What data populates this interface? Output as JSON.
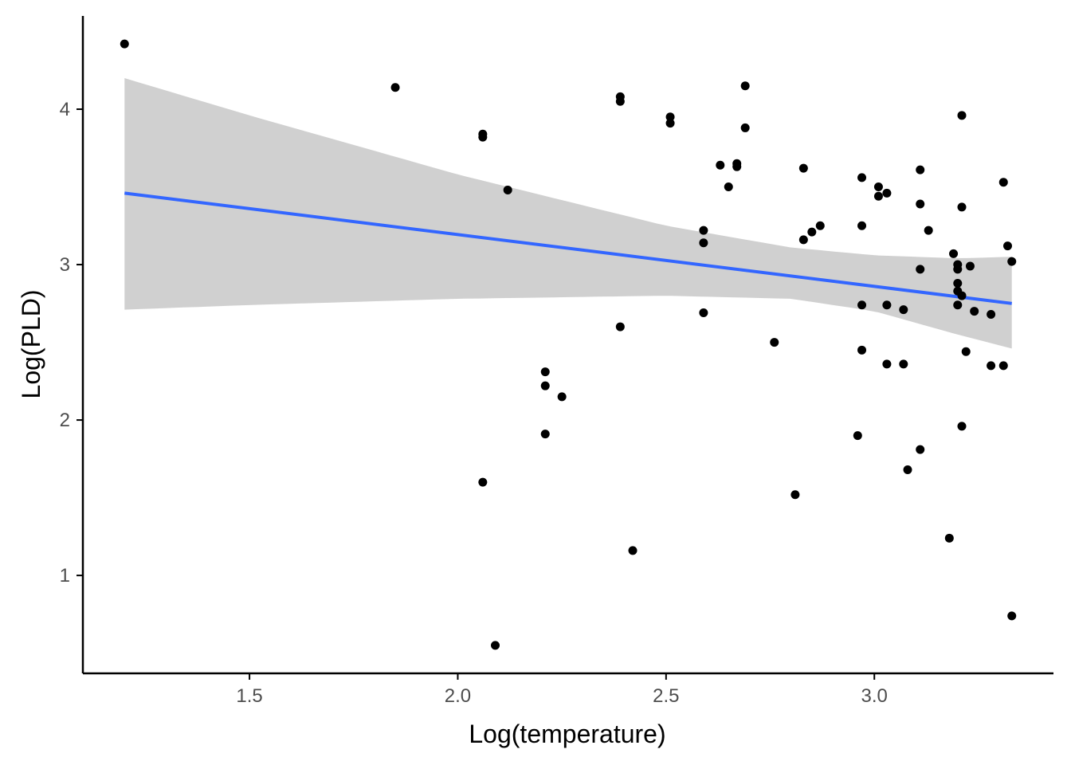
{
  "chart_data": {
    "type": "scatter",
    "xlabel": "Log(temperature)",
    "ylabel": "Log(PLD)",
    "xlim": [
      1.1,
      3.43
    ],
    "ylim": [
      0.37,
      4.6
    ],
    "x_ticks": [
      1.5,
      2.0,
      2.5,
      3.0
    ],
    "x_tick_labels": [
      "1.5",
      "2.0",
      "2.5",
      "3.0"
    ],
    "y_ticks": [
      1,
      2,
      3,
      4
    ],
    "y_tick_labels": [
      "1",
      "2",
      "3",
      "4"
    ],
    "grid": false,
    "legend": "none",
    "points": [
      [
        1.2,
        4.42
      ],
      [
        1.85,
        4.14
      ],
      [
        2.06,
        3.84
      ],
      [
        2.06,
        3.82
      ],
      [
        2.12,
        3.48
      ],
      [
        2.06,
        1.6
      ],
      [
        2.09,
        0.55
      ],
      [
        2.21,
        2.31
      ],
      [
        2.21,
        2.22
      ],
      [
        2.25,
        2.15
      ],
      [
        2.21,
        1.91
      ],
      [
        2.39,
        4.08
      ],
      [
        2.39,
        4.05
      ],
      [
        2.39,
        2.6
      ],
      [
        2.42,
        1.16
      ],
      [
        2.51,
        3.95
      ],
      [
        2.51,
        3.91
      ],
      [
        2.59,
        3.22
      ],
      [
        2.59,
        3.14
      ],
      [
        2.59,
        2.69
      ],
      [
        2.63,
        3.64
      ],
      [
        2.65,
        3.5
      ],
      [
        2.67,
        3.65
      ],
      [
        2.67,
        3.63
      ],
      [
        2.69,
        4.15
      ],
      [
        2.69,
        3.88
      ],
      [
        2.76,
        2.5
      ],
      [
        2.81,
        1.52
      ],
      [
        2.83,
        3.62
      ],
      [
        2.83,
        3.16
      ],
      [
        2.85,
        3.21
      ],
      [
        2.87,
        3.25
      ],
      [
        2.96,
        1.9
      ],
      [
        2.97,
        3.56
      ],
      [
        2.97,
        3.25
      ],
      [
        2.97,
        2.74
      ],
      [
        2.97,
        2.45
      ],
      [
        3.01,
        3.5
      ],
      [
        3.01,
        3.44
      ],
      [
        3.03,
        3.46
      ],
      [
        3.03,
        2.74
      ],
      [
        3.03,
        2.36
      ],
      [
        3.07,
        2.36
      ],
      [
        3.07,
        2.71
      ],
      [
        3.08,
        1.68
      ],
      [
        3.11,
        3.61
      ],
      [
        3.11,
        3.39
      ],
      [
        3.11,
        2.97
      ],
      [
        3.11,
        1.81
      ],
      [
        3.13,
        3.22
      ],
      [
        3.18,
        1.24
      ],
      [
        3.19,
        3.07
      ],
      [
        3.2,
        3.0
      ],
      [
        3.2,
        2.97
      ],
      [
        3.2,
        2.88
      ],
      [
        3.2,
        2.83
      ],
      [
        3.21,
        2.8
      ],
      [
        3.2,
        2.74
      ],
      [
        3.21,
        3.96
      ],
      [
        3.21,
        3.37
      ],
      [
        3.21,
        1.96
      ],
      [
        3.22,
        2.44
      ],
      [
        3.23,
        2.99
      ],
      [
        3.24,
        2.7
      ],
      [
        3.28,
        2.68
      ],
      [
        3.28,
        2.35
      ],
      [
        3.31,
        3.53
      ],
      [
        3.31,
        2.35
      ],
      [
        3.32,
        3.12
      ],
      [
        3.33,
        3.02
      ],
      [
        3.33,
        0.74
      ]
    ],
    "fit_line": {
      "x": [
        1.2,
        3.33
      ],
      "y": [
        3.46,
        2.75
      ]
    },
    "confidence_band": {
      "x": [
        1.2,
        1.5,
        2.0,
        2.5,
        2.8,
        3.0,
        3.2,
        3.33
      ],
      "upper": [
        4.2,
        3.96,
        3.58,
        3.25,
        3.11,
        3.06,
        3.04,
        3.05
      ],
      "lower": [
        2.71,
        2.74,
        2.78,
        2.8,
        2.78,
        2.7,
        2.55,
        2.46
      ]
    }
  },
  "colors": {
    "points": "#000000",
    "fit_line": "#3366FF",
    "band": "#C8C8C8",
    "axis": "#000000"
  }
}
